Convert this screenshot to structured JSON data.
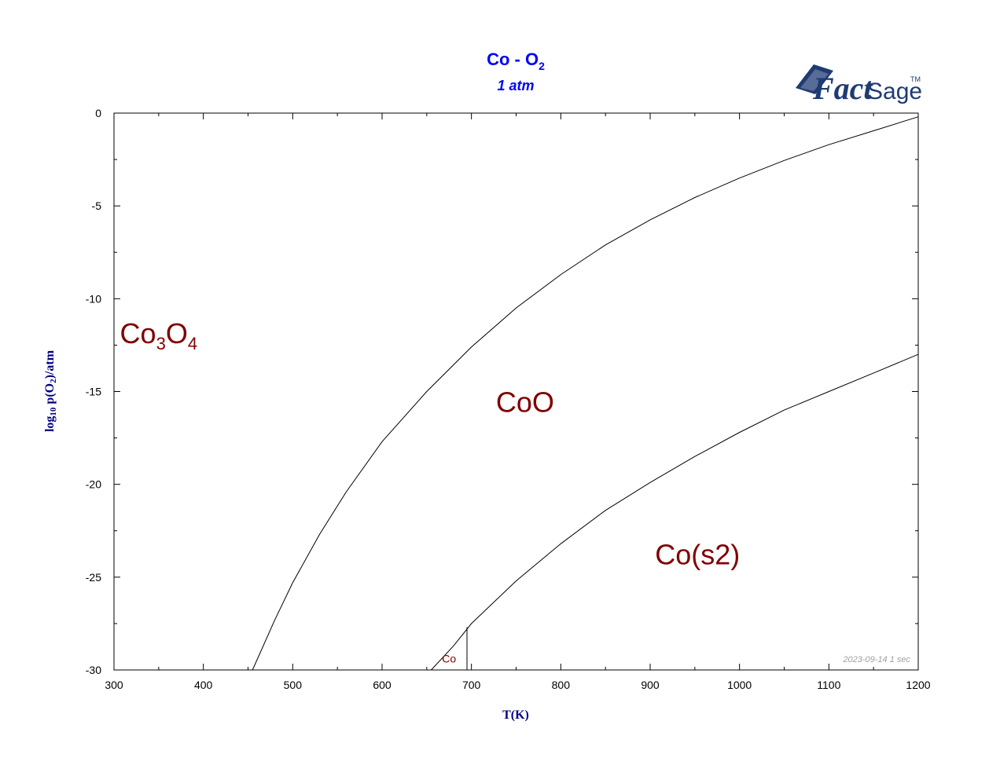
{
  "chart_data": {
    "type": "line",
    "title": "Co - O",
    "title_sub": "2",
    "subtitle": "1 atm",
    "xlabel": "T(K)",
    "ylabel_prefix": "log",
    "ylabel_sub1": "10",
    "ylabel_mid": " p(O",
    "ylabel_sub2": "2",
    "ylabel_suffix": ")/atm",
    "xlim": [
      300,
      1200
    ],
    "ylim": [
      -30,
      0
    ],
    "x_ticks": [
      300,
      400,
      500,
      600,
      700,
      800,
      900,
      1000,
      1100,
      1200
    ],
    "y_ticks": [
      0,
      -5,
      -10,
      -15,
      -20,
      -25,
      -30
    ],
    "grid": false,
    "series": [
      {
        "x": [
          455,
          480,
          500,
          530,
          560,
          600,
          650,
          700,
          750,
          800,
          850,
          900,
          950,
          1000,
          1050,
          1100,
          1150,
          1200
        ],
        "y": [
          -30,
          -27.3,
          -25.3,
          -22.7,
          -20.4,
          -17.7,
          -15.0,
          -12.6,
          -10.5,
          -8.7,
          -7.1,
          -5.75,
          -4.55,
          -3.5,
          -2.55,
          -1.7,
          -0.95,
          -0.2
        ]
      },
      {
        "x": [
          655,
          680,
          700,
          750,
          800,
          850,
          900,
          950,
          1000,
          1050,
          1100,
          1150,
          1200
        ],
        "y": [
          -30,
          -28.7,
          -27.5,
          -25.2,
          -23.2,
          -21.4,
          -19.9,
          -18.5,
          -17.2,
          -16.0,
          -15.0,
          -14.0,
          -13.0
        ]
      },
      {
        "x": [
          695,
          695
        ],
        "y": [
          -30,
          -27.7
        ]
      }
    ],
    "phase_labels": [
      {
        "main": "Co",
        "sub1": "3",
        "mid": "O",
        "sub2": "4",
        "x": 350,
        "y": -12.4,
        "size": 36
      },
      {
        "main": "CoO",
        "x": 760,
        "y": -16.1,
        "size": 36
      },
      {
        "main": "Co(s2)",
        "x": 953,
        "y": -24.3,
        "size": 36
      },
      {
        "main": "Co",
        "x": 675,
        "y": -29.6,
        "size": 14
      }
    ],
    "footer": "2023-09-14  1 sec"
  },
  "logo": {
    "text_a": "Fact",
    "text_b": "Sage",
    "tm": "TM"
  }
}
